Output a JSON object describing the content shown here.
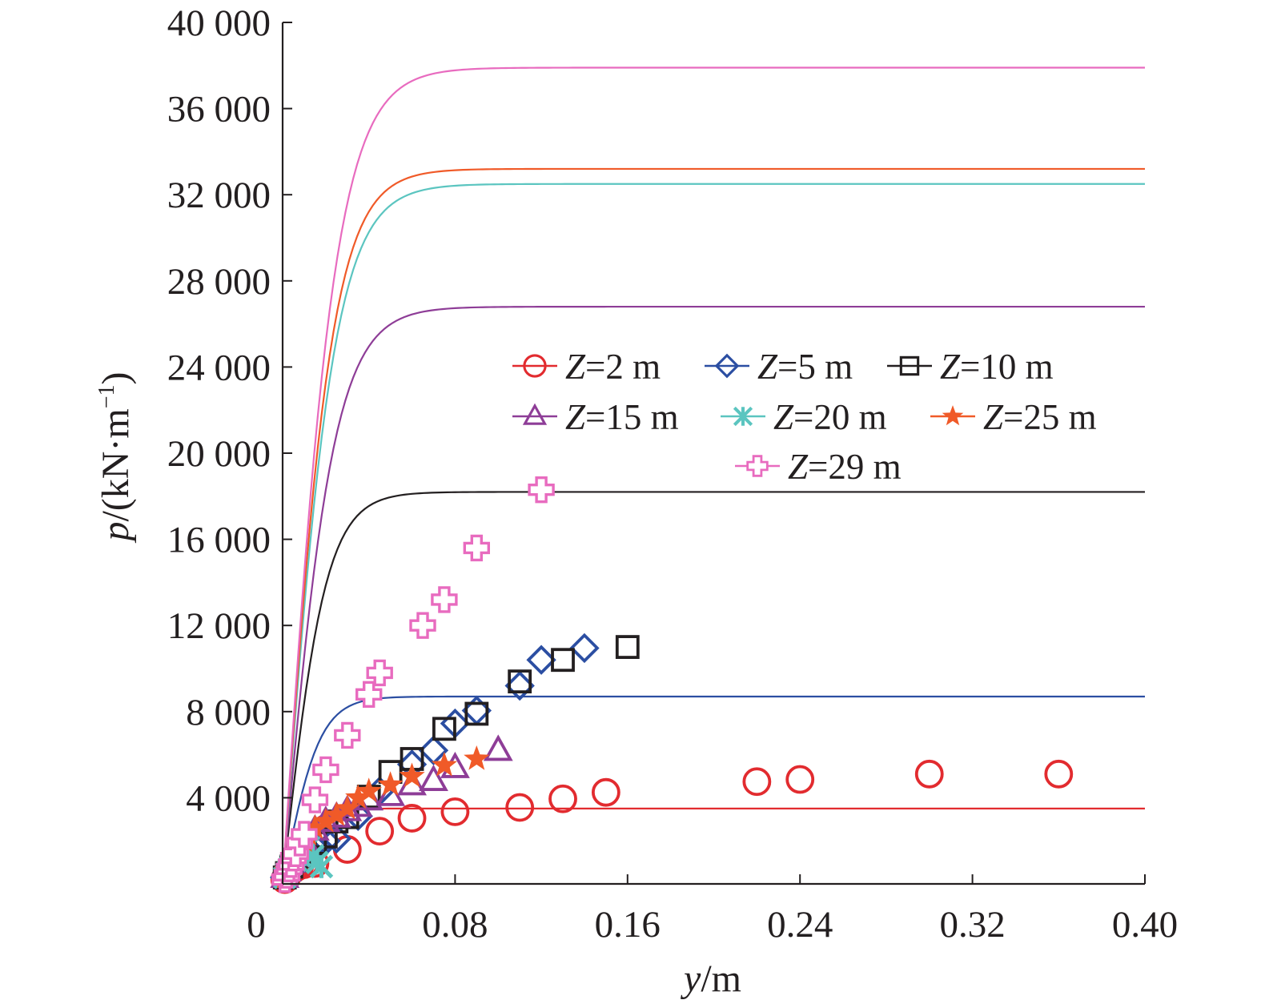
{
  "chart_data": {
    "type": "scatter",
    "title": "",
    "xlabel": {
      "var": "y",
      "unit": "m"
    },
    "ylabel": {
      "var": "p",
      "unit_open": "(kN·m",
      "unit_sup": "−1",
      "unit_close": ")"
    },
    "xlim": [
      0,
      0.4
    ],
    "ylim": [
      0,
      40000
    ],
    "x_ticks": [
      {
        "value": 0,
        "label": "0"
      },
      {
        "value": 0.08,
        "label": "0.08"
      },
      {
        "value": 0.16,
        "label": "0.16"
      },
      {
        "value": 0.24,
        "label": "0.24"
      },
      {
        "value": 0.32,
        "label": "0.32"
      },
      {
        "value": 0.4,
        "label": "0.40"
      }
    ],
    "y_ticks": [
      {
        "value": 4000,
        "label": "4 000"
      },
      {
        "value": 8000,
        "label": "8 000"
      },
      {
        "value": 12000,
        "label": "12 000"
      },
      {
        "value": 16000,
        "label": "16 000"
      },
      {
        "value": 20000,
        "label": "20 000"
      },
      {
        "value": 24000,
        "label": "24 000"
      },
      {
        "value": 28000,
        "label": "28 000"
      },
      {
        "value": 32000,
        "label": "32 000"
      },
      {
        "value": 36000,
        "label": "36 000"
      },
      {
        "value": 40000,
        "label": "40 000"
      }
    ],
    "grid": false,
    "legend_placement": "right-middle",
    "series": [
      {
        "name_var": "Z",
        "name_rest": "=2 m",
        "marker": "circle",
        "color": "#e22b2f",
        "curve": {
          "pult": 3500,
          "y50": 0.012
        },
        "points": [
          [
            0.001,
            200
          ],
          [
            0.002,
            350
          ],
          [
            0.003,
            500
          ],
          [
            0.004,
            620
          ],
          [
            0.006,
            750
          ],
          [
            0.008,
            850
          ],
          [
            0.01,
            900
          ],
          [
            0.015,
            950
          ],
          [
            0.03,
            1600
          ],
          [
            0.045,
            2450
          ],
          [
            0.06,
            3050
          ],
          [
            0.08,
            3350
          ],
          [
            0.11,
            3550
          ],
          [
            0.13,
            3950
          ],
          [
            0.15,
            4250
          ],
          [
            0.22,
            4750
          ],
          [
            0.24,
            4850
          ],
          [
            0.3,
            5100
          ],
          [
            0.36,
            5100
          ]
        ]
      },
      {
        "name_var": "Z",
        "name_rest": "=5 m",
        "marker": "diamond",
        "color": "#2b4ea2",
        "curve": {
          "pult": 8700,
          "y50": 0.017
        },
        "points": [
          [
            0.001,
            300
          ],
          [
            0.002,
            500
          ],
          [
            0.003,
            700
          ],
          [
            0.005,
            900
          ],
          [
            0.008,
            1100
          ],
          [
            0.01,
            1300
          ],
          [
            0.012,
            1500
          ],
          [
            0.015,
            1700
          ],
          [
            0.02,
            2000
          ],
          [
            0.025,
            2100
          ],
          [
            0.035,
            3150
          ],
          [
            0.045,
            4300
          ],
          [
            0.06,
            5550
          ],
          [
            0.07,
            6200
          ],
          [
            0.08,
            7450
          ],
          [
            0.09,
            8050
          ],
          [
            0.11,
            9200
          ],
          [
            0.12,
            10400
          ],
          [
            0.14,
            10950
          ]
        ]
      },
      {
        "name_var": "Z",
        "name_rest": "=10 m",
        "marker": "square",
        "color": "#231f20",
        "curve": {
          "pult": 18200,
          "y50": 0.02
        },
        "points": [
          [
            0.001,
            300
          ],
          [
            0.002,
            500
          ],
          [
            0.004,
            800
          ],
          [
            0.006,
            1100
          ],
          [
            0.008,
            1300
          ],
          [
            0.01,
            1600
          ],
          [
            0.015,
            1900
          ],
          [
            0.02,
            2200
          ],
          [
            0.025,
            2900
          ],
          [
            0.03,
            3100
          ],
          [
            0.04,
            4050
          ],
          [
            0.05,
            5200
          ],
          [
            0.06,
            5800
          ],
          [
            0.075,
            7200
          ],
          [
            0.09,
            7900
          ],
          [
            0.11,
            9400
          ],
          [
            0.13,
            10400
          ],
          [
            0.16,
            11000
          ]
        ]
      },
      {
        "name_var": "Z",
        "name_rest": "=15 m",
        "marker": "triangle",
        "color": "#8e3d97",
        "curve": {
          "pult": 26800,
          "y50": 0.024
        },
        "points": [
          [
            0.001,
            300
          ],
          [
            0.002,
            600
          ],
          [
            0.004,
            1000
          ],
          [
            0.006,
            1300
          ],
          [
            0.008,
            1700
          ],
          [
            0.01,
            2000
          ],
          [
            0.015,
            2500
          ],
          [
            0.02,
            2900
          ],
          [
            0.025,
            3100
          ],
          [
            0.03,
            3400
          ],
          [
            0.035,
            3600
          ],
          [
            0.04,
            3900
          ],
          [
            0.05,
            4100
          ],
          [
            0.06,
            4600
          ],
          [
            0.07,
            4800
          ],
          [
            0.08,
            5400
          ],
          [
            0.1,
            6200
          ]
        ]
      },
      {
        "name_var": "Z",
        "name_rest": "=20 m",
        "marker": "asterisk",
        "color": "#5bc5c0",
        "curve": {
          "pult": 32500,
          "y50": 0.024
        },
        "points": [
          [
            0.001,
            300
          ],
          [
            0.002,
            500
          ],
          [
            0.003,
            700
          ],
          [
            0.004,
            900
          ],
          [
            0.006,
            1100
          ],
          [
            0.008,
            1300
          ],
          [
            0.01,
            1500
          ],
          [
            0.012,
            1700
          ],
          [
            0.014,
            1300
          ],
          [
            0.016,
            1000
          ],
          [
            0.018,
            800
          ]
        ]
      },
      {
        "name_var": "Z",
        "name_rest": "=25 m",
        "marker": "star",
        "color": "#f05a28",
        "curve": {
          "pult": 33200,
          "y50": 0.023
        },
        "points": [
          [
            0.001,
            300
          ],
          [
            0.002,
            600
          ],
          [
            0.004,
            900
          ],
          [
            0.006,
            1300
          ],
          [
            0.008,
            1700
          ],
          [
            0.01,
            2000
          ],
          [
            0.012,
            2300
          ],
          [
            0.015,
            2600
          ],
          [
            0.02,
            2900
          ],
          [
            0.025,
            3200
          ],
          [
            0.03,
            3500
          ],
          [
            0.035,
            4000
          ],
          [
            0.04,
            4300
          ],
          [
            0.05,
            4600
          ],
          [
            0.06,
            5000
          ],
          [
            0.075,
            5500
          ],
          [
            0.09,
            5800
          ]
        ]
      },
      {
        "name_var": "Z",
        "name_rest": "=29 m",
        "marker": "cross",
        "color": "#e86bbf",
        "curve": {
          "pult": 37900,
          "y50": 0.025
        },
        "points": [
          [
            0.001,
            200
          ],
          [
            0.002,
            400
          ],
          [
            0.003,
            700
          ],
          [
            0.004,
            900
          ],
          [
            0.005,
            1200
          ],
          [
            0.006,
            1400
          ],
          [
            0.008,
            1900
          ],
          [
            0.01,
            2300
          ],
          [
            0.015,
            3900
          ],
          [
            0.02,
            5300
          ],
          [
            0.03,
            6900
          ],
          [
            0.04,
            8800
          ],
          [
            0.045,
            9800
          ],
          [
            0.065,
            12000
          ],
          [
            0.075,
            13200
          ],
          [
            0.09,
            15600
          ],
          [
            0.12,
            18300
          ]
        ]
      }
    ]
  }
}
